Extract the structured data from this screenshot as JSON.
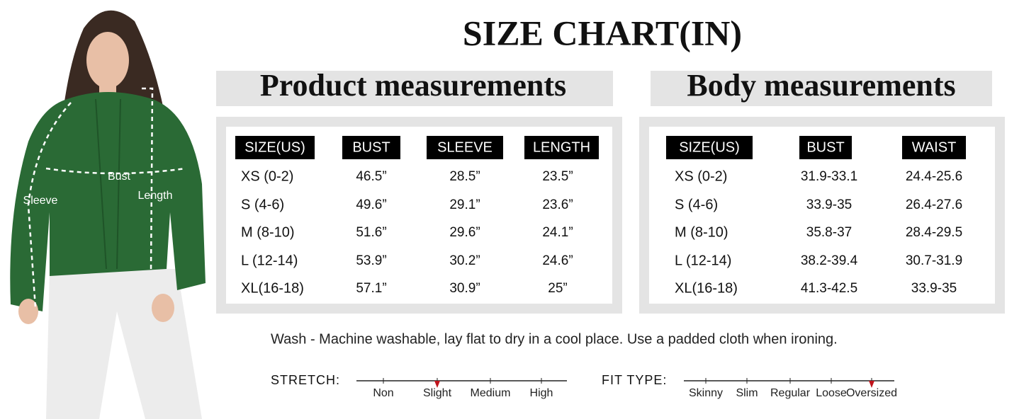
{
  "title": "SIZE CHART(IN)",
  "figure": {
    "labels": [
      "Bust",
      "Length",
      "Sleeve"
    ]
  },
  "product": {
    "heading": "Product measurements",
    "columns": [
      "SIZE(US)",
      "BUST",
      "SLEEVE",
      "LENGTH"
    ],
    "rows": [
      [
        "XS (0-2)",
        "46.5”",
        "28.5”",
        "23.5”"
      ],
      [
        "S (4-6)",
        "49.6”",
        "29.1”",
        "23.6”"
      ],
      [
        "M (8-10)",
        "51.6”",
        "29.6”",
        "24.1”"
      ],
      [
        "L (12-14)",
        "53.9”",
        "30.2”",
        "24.6”"
      ],
      [
        "XL(16-18)",
        "57.1”",
        "30.9”",
        "25”"
      ]
    ]
  },
  "body": {
    "heading": "Body measurements",
    "columns": [
      "SIZE(US)",
      "BUST",
      "WAIST"
    ],
    "rows": [
      [
        "XS (0-2)",
        "31.9-33.1",
        "24.4-25.6"
      ],
      [
        "S (4-6)",
        "33.9-35",
        "26.4-27.6"
      ],
      [
        "M (8-10)",
        "35.8-37",
        "28.4-29.5"
      ],
      [
        "L (12-14)",
        "38.2-39.4",
        "30.7-31.9"
      ],
      [
        "XL(16-18)",
        "41.3-42.5",
        "33.9-35"
      ]
    ]
  },
  "wash": "Wash - Machine washable, lay flat to dry in a cool place. Use a padded cloth when ironing.",
  "stretch": {
    "label": "STRETCH:",
    "levels": [
      "Non",
      "Slight",
      "Medium",
      "High"
    ],
    "selected": 1
  },
  "fit": {
    "label": "FIT TYPE:",
    "levels": [
      "Skinny",
      "Slim",
      "Regular",
      "Loose",
      "Oversized"
    ],
    "selected": 4
  }
}
